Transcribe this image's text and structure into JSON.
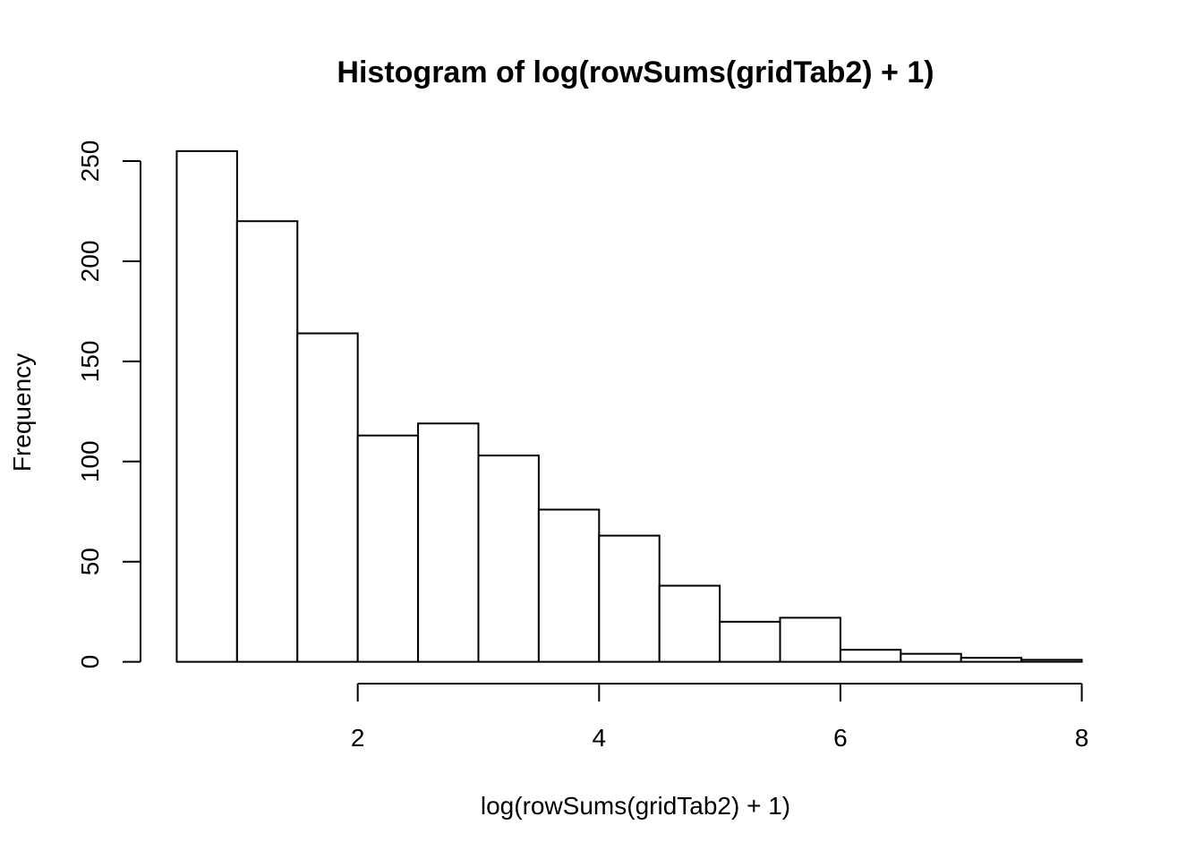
{
  "chart_data": {
    "type": "bar",
    "title": "Histogram of log(rowSums(gridTab2) + 1)",
    "xlabel": "log(rowSums(gridTab2) + 1)",
    "ylabel": "Frequency",
    "bins": [
      {
        "x0": 0.5,
        "x1": 1.0,
        "count": 255
      },
      {
        "x0": 1.0,
        "x1": 1.5,
        "count": 220
      },
      {
        "x0": 1.5,
        "x1": 2.0,
        "count": 164
      },
      {
        "x0": 2.0,
        "x1": 2.5,
        "count": 113
      },
      {
        "x0": 2.5,
        "x1": 3.0,
        "count": 119
      },
      {
        "x0": 3.0,
        "x1": 3.5,
        "count": 103
      },
      {
        "x0": 3.5,
        "x1": 4.0,
        "count": 76
      },
      {
        "x0": 4.0,
        "x1": 4.5,
        "count": 63
      },
      {
        "x0": 4.5,
        "x1": 5.0,
        "count": 38
      },
      {
        "x0": 5.0,
        "x1": 5.5,
        "count": 20
      },
      {
        "x0": 5.5,
        "x1": 6.0,
        "count": 22
      },
      {
        "x0": 6.0,
        "x1": 6.5,
        "count": 6
      },
      {
        "x0": 6.5,
        "x1": 7.0,
        "count": 4
      },
      {
        "x0": 7.0,
        "x1": 7.5,
        "count": 2
      },
      {
        "x0": 7.5,
        "x1": 8.0,
        "count": 1
      }
    ],
    "xticks": [
      2,
      4,
      6,
      8
    ],
    "yticks": [
      0,
      50,
      100,
      150,
      200,
      250
    ],
    "xlim": [
      0.2,
      8.3
    ],
    "ylim": [
      -10,
      267
    ],
    "grid": false,
    "bar_fill": "#ffffff",
    "bar_stroke": "#000000"
  }
}
